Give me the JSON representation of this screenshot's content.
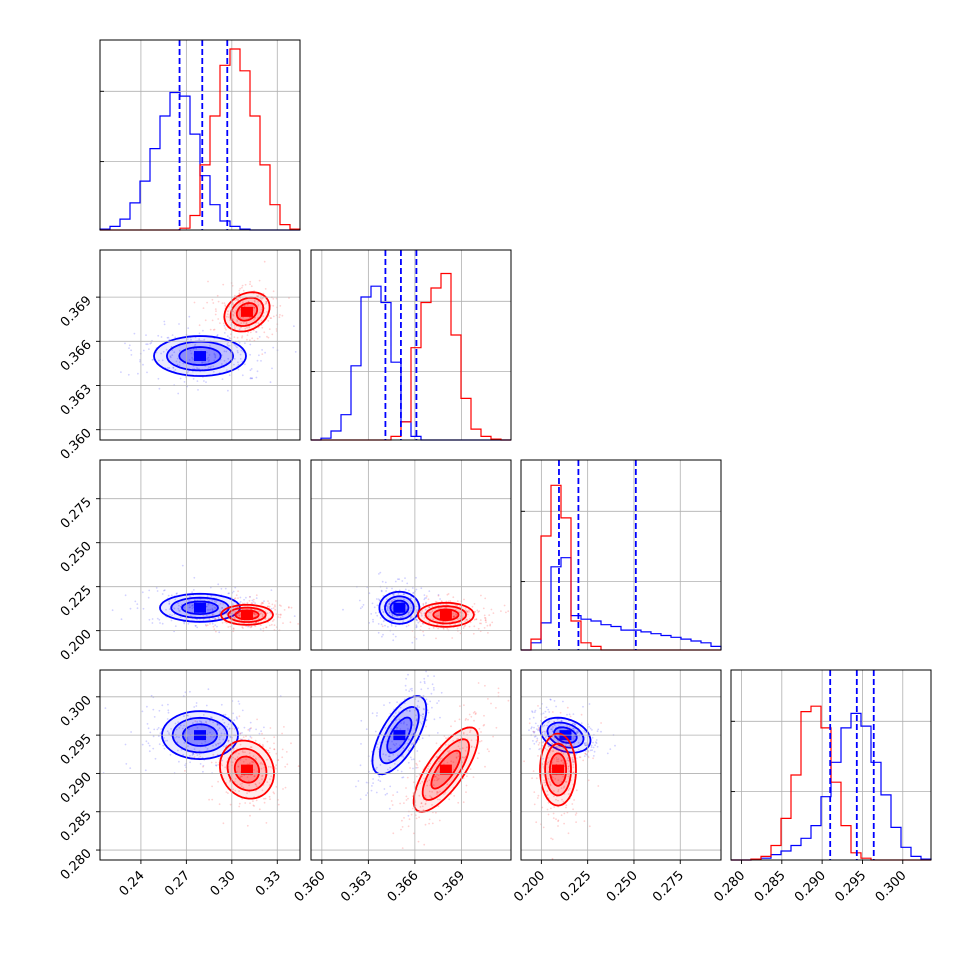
{
  "colors": {
    "blue": "#0000ff",
    "red": "#ff0000",
    "grid": "#b0b0b0",
    "frame": "#000000"
  },
  "chart_data": {
    "type": "corner",
    "grid": true,
    "quantiles_dashed_for": "blue",
    "parameters": [
      {
        "range": [
          0.213,
          0.345
        ],
        "ticks": [
          "0.24",
          "0.27",
          "0.30",
          "0.33"
        ],
        "tick_values": [
          0.24,
          0.27,
          0.3,
          0.33
        ],
        "hist_blue": [
          0.005,
          0.02,
          0.06,
          0.15,
          0.27,
          0.45,
          0.63,
          0.76,
          0.74,
          0.53,
          0.3,
          0.14,
          0.05,
          0.02,
          0.005,
          0,
          0,
          0,
          0,
          0
        ],
        "hist_red": [
          0,
          0,
          0,
          0,
          0,
          0,
          0,
          0,
          0.01,
          0.08,
          0.36,
          0.63,
          0.91,
          1.0,
          0.88,
          0.63,
          0.36,
          0.14,
          0.03,
          0.005
        ],
        "quantiles_blue": [
          0.2655,
          0.2805,
          0.297
        ],
        "center_blue": 0.279,
        "center_red": 0.31
      },
      {
        "range": [
          0.3593,
          0.3722
        ],
        "ticks": [
          "0.360",
          "0.363",
          "0.366",
          "0.369"
        ],
        "tick_values": [
          0.36,
          0.363,
          0.366,
          0.369
        ],
        "hist_blue": [
          0,
          0.01,
          0.05,
          0.14,
          0.41,
          0.79,
          0.85,
          0.76,
          0.43,
          0.1,
          0.02,
          0,
          0,
          0,
          0,
          0,
          0,
          0,
          0,
          0
        ],
        "hist_red": [
          0,
          0,
          0,
          0,
          0,
          0,
          0,
          0,
          0.02,
          0.1,
          0.51,
          0.76,
          0.84,
          0.92,
          0.58,
          0.23,
          0.06,
          0.02,
          0.005,
          0
        ],
        "quantiles_blue": [
          0.3641,
          0.3651,
          0.3661
        ],
        "center_blue": 0.365,
        "center_red": 0.368
      },
      {
        "range": [
          0.189,
          0.297
        ],
        "ticks": [
          "0.200",
          "0.225",
          "0.250",
          "0.275"
        ],
        "tick_values": [
          0.2,
          0.225,
          0.25,
          0.275
        ],
        "hist_blue": [
          0,
          0.04,
          0.15,
          0.46,
          0.51,
          0.19,
          0.17,
          0.16,
          0.14,
          0.13,
          0.11,
          0.11,
          0.1,
          0.09,
          0.08,
          0.07,
          0.06,
          0.05,
          0.04,
          0.02
        ],
        "hist_red": [
          0,
          0.06,
          0.63,
          0.91,
          0.73,
          0.16,
          0.04,
          0.02,
          0,
          0,
          0,
          0,
          0,
          0,
          0,
          0,
          0,
          0,
          0,
          0
        ],
        "quantiles_blue": [
          0.2095,
          0.22,
          0.251
        ],
        "center_blue": 0.213,
        "center_red": 0.209
      },
      {
        "range": [
          0.2787,
          0.3035
        ],
        "ticks": [
          "0.280",
          "0.285",
          "0.290",
          "0.295",
          "0.300"
        ],
        "tick_values": [
          0.28,
          0.285,
          0.29,
          0.295,
          0.3
        ],
        "ylim_ticks": [
          "0.280",
          "0.285",
          "0.290",
          "0.295",
          "0.300"
        ],
        "hist_blue": [
          0,
          0,
          0.005,
          0.01,
          0.03,
          0.05,
          0.08,
          0.12,
          0.19,
          0.35,
          0.54,
          0.73,
          0.81,
          0.74,
          0.54,
          0.36,
          0.18,
          0.07,
          0.02,
          0.005
        ],
        "hist_red": [
          0,
          0,
          0.005,
          0.02,
          0.08,
          0.23,
          0.47,
          0.82,
          0.85,
          0.73,
          0.43,
          0.19,
          0.04,
          0.01,
          0,
          0,
          0,
          0,
          0,
          0
        ],
        "quantiles_blue": [
          0.291,
          0.2943,
          0.2964
        ],
        "center_blue": 0.295,
        "center_red": 0.2905
      }
    ]
  }
}
